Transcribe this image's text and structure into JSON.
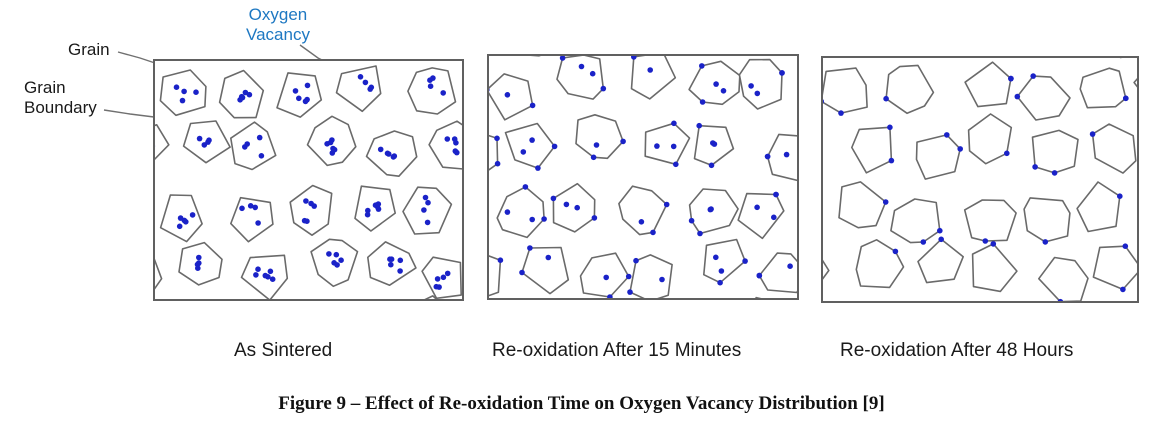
{
  "annotations": {
    "grain": "Grain",
    "grain_boundary_line1": "Grain",
    "grain_boundary_line2": "Boundary",
    "oxygen_vacancy_line1": "Oxygen",
    "oxygen_vacancy_line2": "Vacancy",
    "vacancy_color": "#1a22c8"
  },
  "panels": [
    {
      "caption": "As Sintered",
      "vacancy_distribution": "throughout grains"
    },
    {
      "caption": "Re-oxidation After 15 Minutes",
      "vacancy_distribution": "grains and boundaries"
    },
    {
      "caption": "Re-oxidation After 48 Hours",
      "vacancy_distribution": "grain boundaries only"
    }
  ],
  "figure_caption": "Figure 9 – Effect of Re-oxidation Time on Oxygen Vacancy Distribution [9]"
}
